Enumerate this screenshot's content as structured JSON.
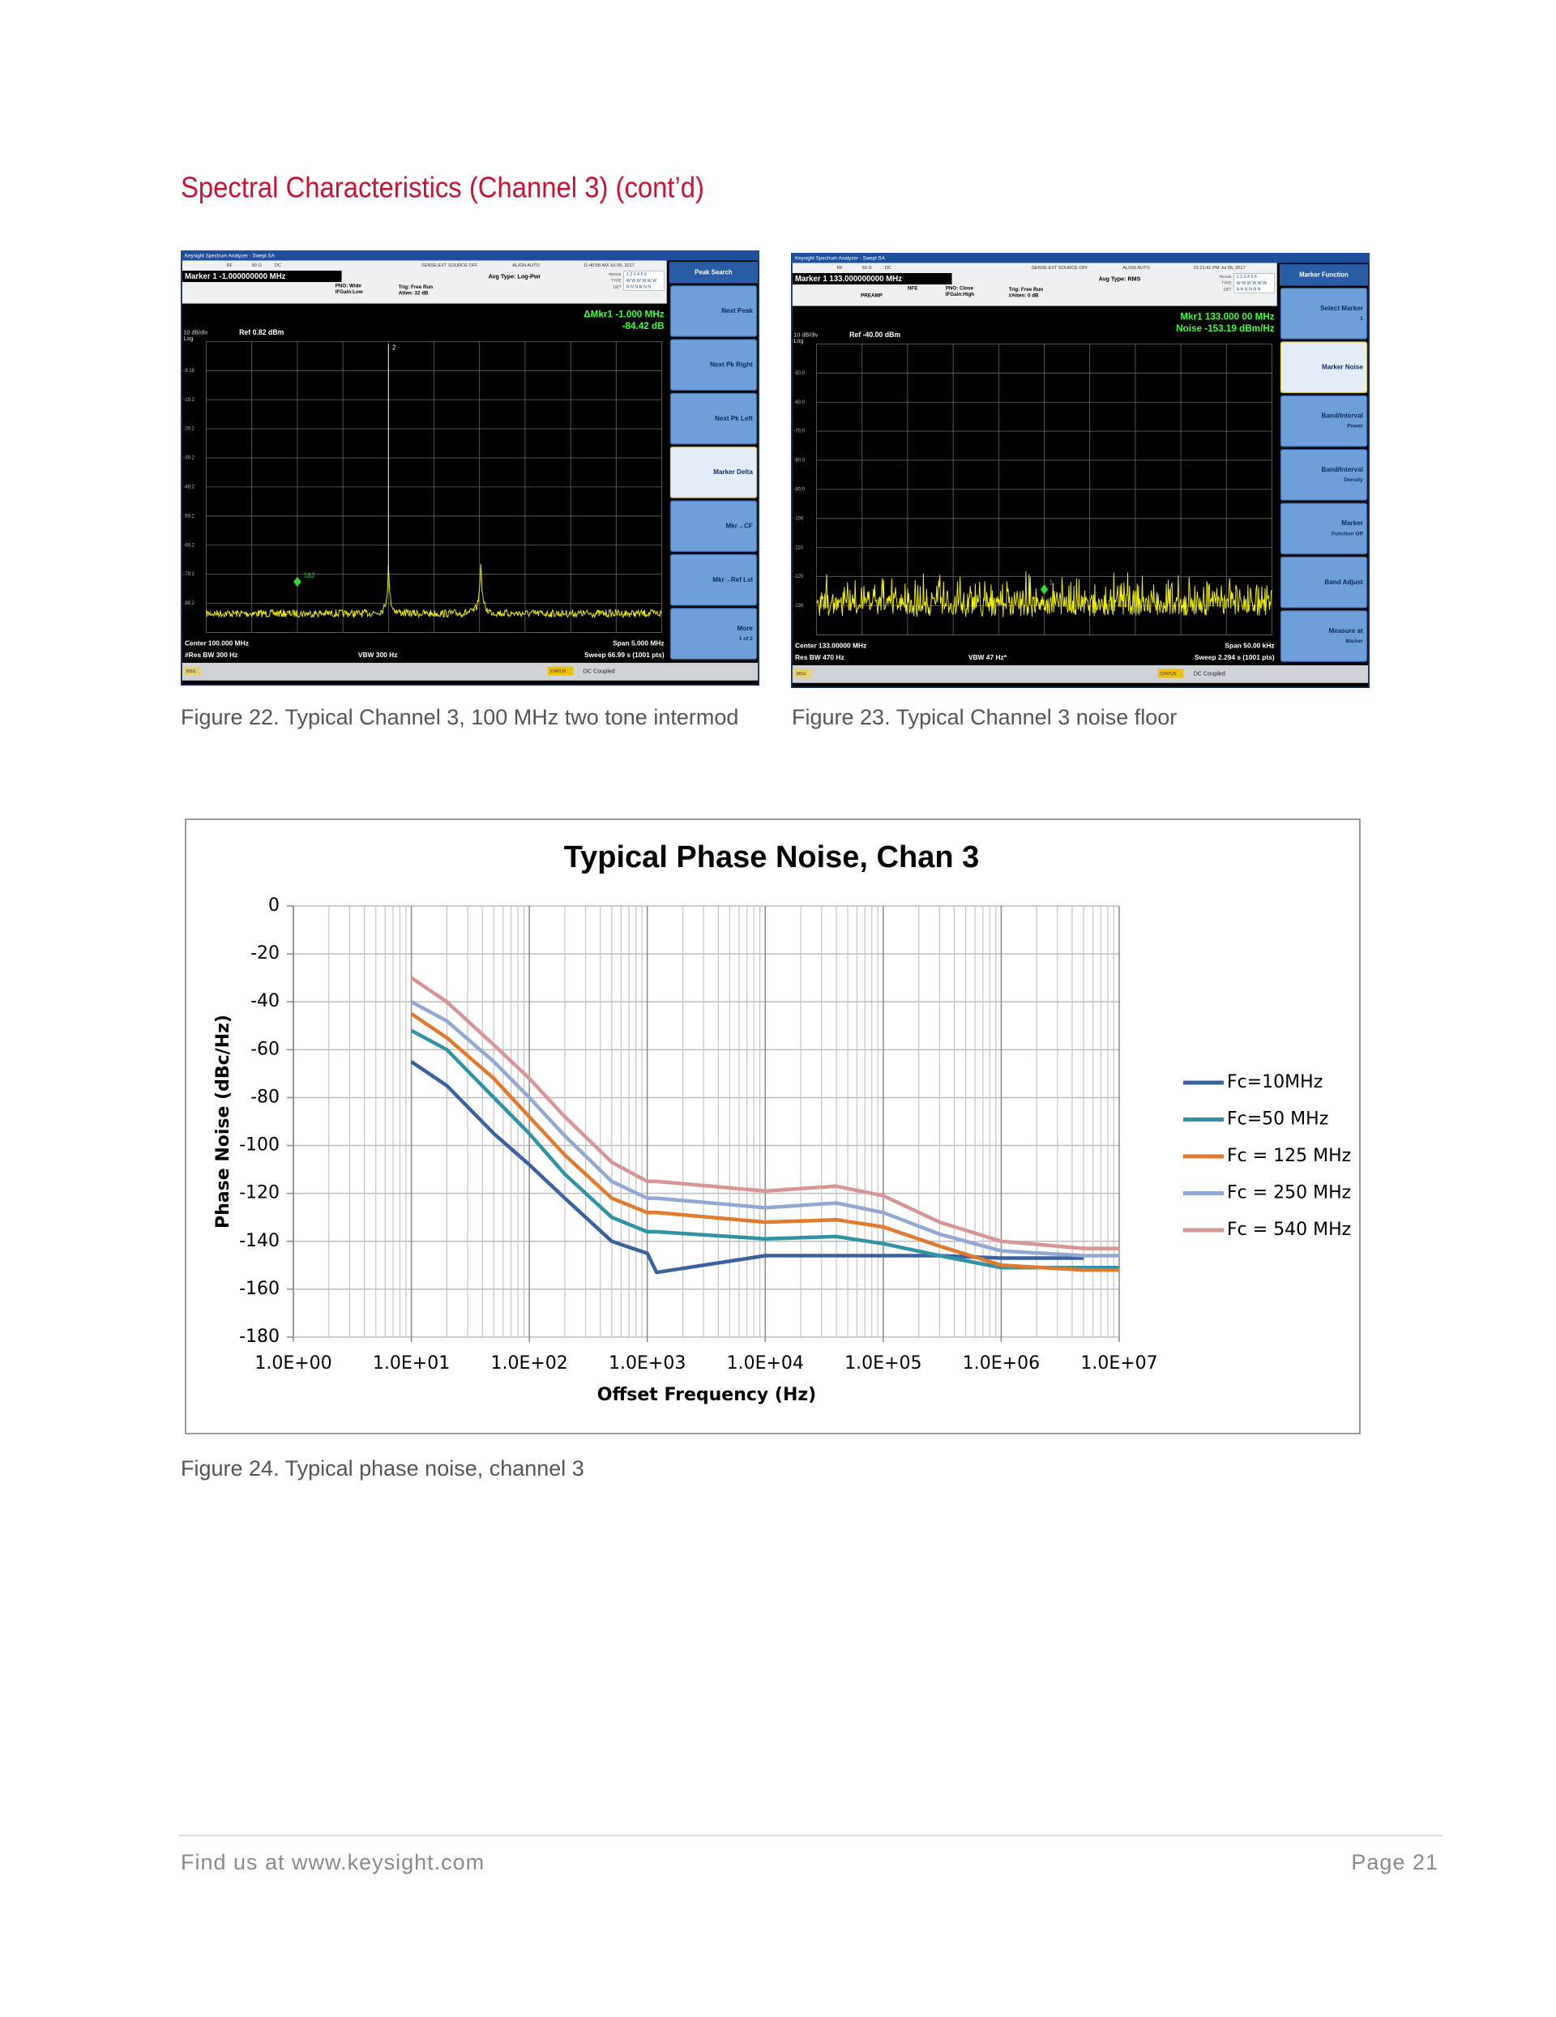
{
  "header": {
    "title": "Spectral Characteristics (Channel 3) (cont’d)"
  },
  "figures": [
    {
      "screen": {
        "app_title": "Keysight Spectrum Analyzer - Swept SA",
        "input": "RF",
        "impedance": "50 Ω",
        "coupling_top": "DC",
        "sense": "SENSE:EXT  SOURCE OFF",
        "align": "ALIGN AUTO",
        "time": "11:40:58 AM Jul 06, 2017",
        "marker": "Marker 1 -1.000000000 MHz",
        "pno": "PNO: Wide",
        "ifgain": "IFGain:Low",
        "trig": "Trig: Free Run",
        "atten": "Atten: 32 dB",
        "avg_type": "Avg Type: Log-Pwr",
        "trace_labels": [
          "TRACE",
          "TYPE",
          "DET"
        ],
        "trace_row": "1 2 3 4 5 6",
        "type_row": "W W W W W W",
        "det_row": "N N N N N N",
        "readout_1": "ΔMkr1 -1.000 MHz",
        "readout_2": "-84.42 dB",
        "scale": "10 dB/div",
        "log": "Log",
        "ref": "Ref 0.82 dBm",
        "y_labels": [
          "-9.18",
          "-19.2",
          "-29.2",
          "-39.2",
          "-49.2",
          "-59.2",
          "-69.2",
          "-79.2",
          "-89.2"
        ],
        "marker_tags": [
          "1Δ2",
          "2"
        ],
        "center": "Center 100.000 MHz",
        "res_bw": "#Res BW 300 Hz",
        "vbw": "VBW 300 Hz",
        "span": "Span 5.000 MHz",
        "sweep": "Sweep  66.99 s (1001 pts)",
        "msg": "MSG",
        "status": "STATUS",
        "coupling": "DC Coupled",
        "softkey_title": "Peak Search",
        "softkeys": [
          [
            "Next Peak"
          ],
          [
            "Next Pk Right"
          ],
          [
            "Next Pk Left"
          ],
          [
            "Marker Delta"
          ],
          [
            "Mkr→CF"
          ],
          [
            "Mkr→Ref Lvl"
          ],
          [
            "More",
            "1 of 2"
          ]
        ]
      },
      "caption": "Figure 22. Typical Channel 3, 100 MHz two tone intermod"
    },
    {
      "screen": {
        "app_title": "Keysight Spectrum Analyzer - Swept SA",
        "input": "RF",
        "impedance": "50 Ω",
        "coupling_top": "DC",
        "sense": "SENSE:EXT  SOURCE OFF",
        "align": "ALIGN AUTO",
        "time": "01:21:41 PM Jul 06, 2017",
        "marker": "Marker 1 133.000000000 MHz",
        "preamp": "PREAMP",
        "nfe": "NFE",
        "pno": "PNO: Close",
        "ifgain": "IFGain:High",
        "trig": "Trig: Free Run",
        "atten": "#Atten: 0 dB",
        "avg_type": "Avg Type: RMS",
        "trace_labels": [
          "TRACE",
          "TYPE",
          "DET"
        ],
        "trace_row": "1 2 3 4 5 6",
        "type_row": "W W W W W W",
        "det_row": "A N N N N N",
        "readout_1": "Mkr1 133.000 00 MHz",
        "readout_2": "Noise -153.19 dBm/Hz",
        "scale": "10 dB/div",
        "log": "Log",
        "ref": "Ref -40.00 dBm",
        "y_labels": [
          "-50.0",
          "-60.0",
          "-70.0",
          "-80.0",
          "-90.0",
          "-100",
          "-110",
          "-120",
          "-130"
        ],
        "marker_tags": [
          "1"
        ],
        "center": "Center 133.00000 MHz",
        "res_bw": "Res BW 470 Hz",
        "vbw": "VBW 47 Hz*",
        "span": "Span 50.00 kHz",
        "sweep": "Sweep  2.294 s (1001 pts)",
        "msg": "MSG",
        "status": "STATUS",
        "coupling": "DC Coupled",
        "softkey_title": "Marker Function",
        "softkeys": [
          [
            "Select Marker",
            "1"
          ],
          [
            "Marker Noise"
          ],
          [
            "Band/Interval",
            "Power"
          ],
          [
            "Band/Interval",
            "Density"
          ],
          [
            "Marker",
            "Function Off"
          ],
          [
            "Band Adjust"
          ],
          [
            "Measure at",
            "Marker"
          ]
        ]
      },
      "caption": "Figure 23. Typical Channel 3 noise floor"
    }
  ],
  "chart_data": {
    "type": "line",
    "title": "Typical Phase Noise, Chan 3",
    "x_label": "Offset Frequency (Hz)",
    "y_label": "Phase Noise (dBc/Hz)",
    "x_scale": "log",
    "grid": true,
    "legend": "right",
    "xlim": [
      1,
      10000000
    ],
    "xticks": [
      {
        "value": 1,
        "label": "1.0E+00"
      },
      {
        "value": 10,
        "label": "1.0E+01"
      },
      {
        "value": 100,
        "label": "1.0E+02"
      },
      {
        "value": 1000,
        "label": "1.0E+03"
      },
      {
        "value": 10000,
        "label": "1.0E+04"
      },
      {
        "value": 100000,
        "label": "1.0E+05"
      },
      {
        "value": 1000000,
        "label": "1.0E+06"
      },
      {
        "value": 10000000,
        "label": "1.0E+07"
      }
    ],
    "ylim": [
      -180,
      0
    ],
    "yticks": [
      -180,
      -160,
      -140,
      -120,
      -100,
      -80,
      -60,
      -40,
      -20,
      0
    ],
    "x": [
      10,
      20,
      50,
      100,
      200,
      500,
      1000,
      1200,
      10000,
      40000,
      100000,
      300000,
      1000000,
      5000000,
      10000000
    ],
    "series": [
      {
        "name": "Fc=10MHz",
        "color": "#3a62a2",
        "values": [
          -65,
          -75,
          -95,
          -108,
          -122,
          -140,
          -145,
          -153,
          -146,
          -146,
          -146,
          -146,
          -147,
          -147,
          null
        ]
      },
      {
        "name": "Fc=50 MHz",
        "color": "#2f93a6",
        "values": [
          -52,
          -60,
          -80,
          -95,
          -112,
          -130,
          -136,
          -136,
          -139,
          -138,
          -141,
          -146,
          -151,
          -151,
          -151
        ]
      },
      {
        "name": "Fc = 125 MHz",
        "color": "#e07a2c",
        "values": [
          -45,
          -55,
          -72,
          -88,
          -104,
          -122,
          -128,
          -128,
          -132,
          -131,
          -134,
          -142,
          -150,
          -152,
          -152
        ]
      },
      {
        "name": "Fc = 250 MHz",
        "color": "#91a7d4",
        "values": [
          -40,
          -48,
          -65,
          -80,
          -96,
          -115,
          -122,
          -122,
          -126,
          -124,
          -128,
          -137,
          -144,
          -146,
          -146
        ]
      },
      {
        "name": "Fc = 540 MHz",
        "color": "#d89594",
        "values": [
          -30,
          -40,
          -58,
          -72,
          -88,
          -107,
          -115,
          -115,
          -119,
          -117,
          -121,
          -132,
          -140,
          -143,
          -143
        ]
      }
    ]
  },
  "chart_caption": "Figure 24. Typical phase noise, channel 3",
  "footer": {
    "link": "Find us at www.keysight.com",
    "page": "Page 21"
  }
}
